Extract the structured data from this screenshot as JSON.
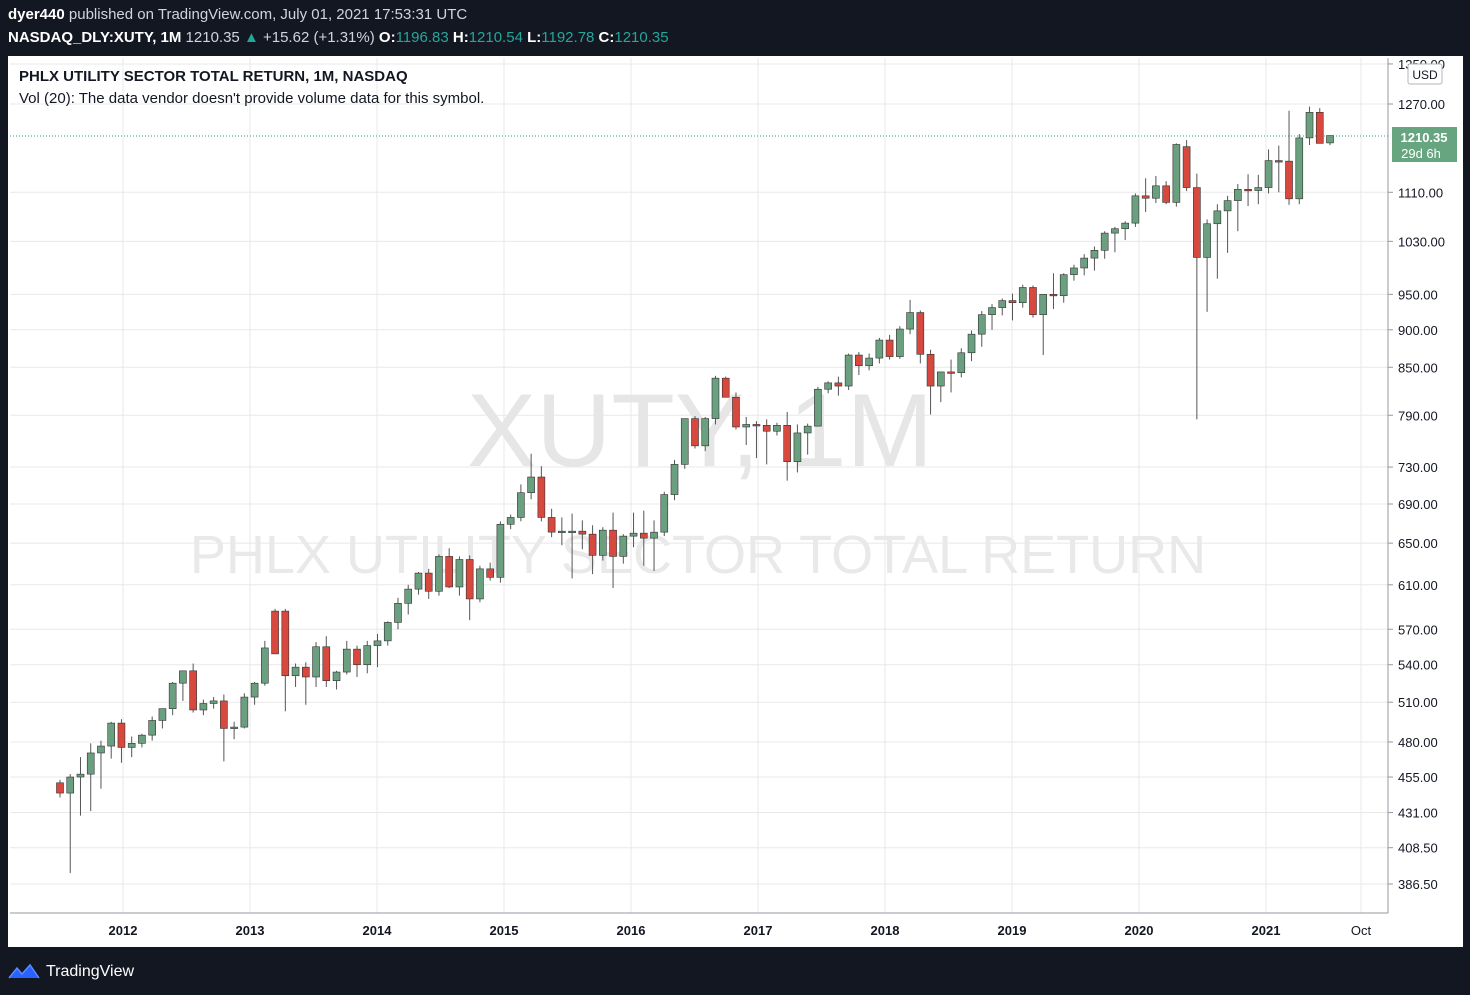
{
  "header": {
    "author": "dyer440",
    "published_text": "published on TradingView.com, July 01, 2021 17:53:31 UTC",
    "symbol": "NASDAQ_DLY:XUTY, 1M",
    "last": "1210.35",
    "up_arrow": "▲",
    "change": "+15.62 (+1.31%)",
    "o_label": "O:",
    "o_value": "1196.83",
    "h_label": "H:",
    "h_value": "1210.54",
    "l_label": "L:",
    "l_value": "1192.78",
    "c_label": "C:",
    "c_value": "1210.35"
  },
  "legend": {
    "title": "PHLX UTILITY SECTOR TOTAL RETURN, 1M, NASDAQ",
    "volume_note": "Vol (20): The data vendor doesn't provide volume data for this symbol."
  },
  "watermark": {
    "line1": "XUTY, 1M",
    "line2": "PHLX UTILITY SECTOR TOTAL RETURN"
  },
  "price_scale": {
    "currency": "USD",
    "last_price": "1210.35",
    "countdown": "29d 6h"
  },
  "footer": {
    "brand": "TradingView"
  },
  "colors": {
    "up": "#26a69a",
    "down": "#ef5350",
    "up_fill": "#6a9f7f",
    "down_fill": "#d7493e",
    "grid": "#e8e8e8",
    "text": "#131722",
    "badge": "#66a57f"
  },
  "chart_data": {
    "type": "candlestick",
    "title": "PHLX UTILITY SECTOR TOTAL RETURN, 1M, NASDAQ",
    "interval": "1M",
    "y_scale": "log",
    "y_ticks": [
      "386.50",
      "408.50",
      "431.00",
      "455.00",
      "480.00",
      "510.00",
      "540.00",
      "570.00",
      "610.00",
      "650.00",
      "690.00",
      "730.00",
      "790.00",
      "850.00",
      "900.00",
      "950.00",
      "1030.00",
      "1110.00",
      "1270.00",
      "1350.00"
    ],
    "x_ticks": [
      "2012",
      "2013",
      "2014",
      "2015",
      "2016",
      "2017",
      "2018",
      "2019",
      "2020",
      "2021",
      "Oct"
    ],
    "last_price": 1210.35,
    "ohlc": [
      [
        "2011-08",
        451,
        453,
        441,
        444
      ],
      [
        "2011-09",
        444,
        457,
        393,
        455
      ],
      [
        "2011-10",
        455,
        469,
        429,
        457
      ],
      [
        "2011-11",
        457,
        479,
        432,
        472
      ],
      [
        "2011-12",
        472,
        481,
        447,
        477
      ],
      [
        "2012-01",
        477,
        495,
        468,
        494
      ],
      [
        "2012-02",
        494,
        497,
        465,
        476
      ],
      [
        "2012-03",
        476,
        484,
        469,
        479
      ],
      [
        "2012-04",
        479,
        486,
        476,
        485
      ],
      [
        "2012-05",
        485,
        499,
        481,
        496
      ],
      [
        "2012-06",
        496,
        505,
        490,
        505
      ],
      [
        "2012-07",
        505,
        526,
        500,
        525
      ],
      [
        "2012-08",
        525,
        535,
        511,
        535
      ],
      [
        "2012-09",
        535,
        541,
        502,
        504
      ],
      [
        "2012-10",
        504,
        512,
        500,
        509
      ],
      [
        "2012-11",
        509,
        514,
        505,
        511
      ],
      [
        "2012-12",
        511,
        516,
        466,
        490
      ],
      [
        "2013-01",
        490,
        495,
        482,
        491
      ],
      [
        "2013-02",
        491,
        517,
        490,
        514
      ],
      [
        "2013-03",
        514,
        526,
        508,
        525
      ],
      [
        "2013-04",
        525,
        560,
        523,
        554
      ],
      [
        "2013-05",
        586,
        588,
        550,
        549
      ],
      [
        "2013-06",
        586,
        588,
        503,
        531
      ],
      [
        "2013-07",
        531,
        541,
        522,
        538
      ],
      [
        "2013-08",
        538,
        542,
        508,
        530
      ],
      [
        "2013-09",
        530,
        559,
        522,
        555
      ],
      [
        "2013-10",
        555,
        564,
        522,
        527
      ],
      [
        "2013-11",
        527,
        535,
        520,
        534
      ],
      [
        "2013-12",
        534,
        560,
        532,
        553
      ],
      [
        "2013-14",
        553,
        556,
        530,
        540
      ],
      [
        "2014-01",
        540,
        560,
        533,
        556
      ],
      [
        "2014-02",
        556,
        566,
        538,
        560
      ],
      [
        "2014-03",
        560,
        577,
        556,
        576
      ],
      [
        "2014-04",
        576,
        598,
        570,
        593
      ],
      [
        "2014-05",
        593,
        610,
        583,
        606
      ],
      [
        "2014-06",
        606,
        622,
        601,
        621
      ],
      [
        "2014-07",
        621,
        625,
        597,
        604
      ],
      [
        "2014-08",
        604,
        639,
        600,
        637
      ],
      [
        "2014-09",
        637,
        645,
        607,
        608
      ],
      [
        "2014-10",
        608,
        637,
        600,
        634
      ],
      [
        "2014-11",
        634,
        638,
        578,
        597
      ],
      [
        "2014-12",
        597,
        628,
        594,
        625
      ],
      [
        "2015-01",
        625,
        631,
        614,
        617
      ],
      [
        "2015-02",
        617,
        672,
        612,
        669
      ],
      [
        "2015-03",
        669,
        679,
        664,
        676
      ],
      [
        "2015-04",
        676,
        711,
        672,
        702
      ],
      [
        "2015-05",
        702,
        745,
        695,
        719
      ],
      [
        "2015-06",
        719,
        731,
        672,
        676
      ],
      [
        "2015-07",
        676,
        685,
        656,
        661
      ],
      [
        "2015-08",
        661,
        676,
        648,
        662
      ],
      [
        "2015-09",
        662,
        680,
        616,
        662
      ],
      [
        "2015-10",
        662,
        673,
        644,
        659
      ],
      [
        "2015-11",
        659,
        668,
        620,
        638
      ],
      [
        "2015-12",
        638,
        666,
        633,
        663
      ],
      [
        "2016-01",
        663,
        681,
        607,
        637
      ],
      [
        "2016-02",
        637,
        659,
        630,
        657
      ],
      [
        "2016-03",
        657,
        681,
        646,
        660
      ],
      [
        "2016-04",
        660,
        683,
        628,
        655
      ],
      [
        "2016-05",
        655,
        673,
        623,
        661
      ],
      [
        "2016-06",
        661,
        703,
        657,
        700
      ],
      [
        "2016-07",
        700,
        738,
        694,
        733
      ],
      [
        "2016-08",
        733,
        786,
        728,
        786
      ],
      [
        "2016-09",
        786,
        789,
        751,
        754
      ],
      [
        "2016-10",
        754,
        788,
        748,
        786
      ],
      [
        "2016-11",
        786,
        839,
        779,
        836
      ],
      [
        "2016-12",
        836,
        838,
        812,
        812
      ],
      [
        "2016-13",
        812,
        818,
        773,
        776
      ],
      [
        "2017-01",
        776,
        788,
        755,
        779
      ],
      [
        "2017-02",
        779,
        783,
        740,
        778
      ],
      [
        "2017-03",
        778,
        785,
        733,
        771
      ],
      [
        "2017-04",
        771,
        781,
        766,
        778
      ],
      [
        "2017-05",
        778,
        794,
        715,
        736
      ],
      [
        "2017-06",
        736,
        779,
        724,
        769
      ],
      [
        "2017-07",
        769,
        780,
        744,
        777
      ],
      [
        "2017-08",
        777,
        825,
        777,
        822
      ],
      [
        "2017-09",
        822,
        832,
        817,
        830
      ],
      [
        "2017-10",
        830,
        838,
        814,
        826
      ],
      [
        "2017-11",
        826,
        868,
        821,
        866
      ],
      [
        "2017-12",
        866,
        870,
        840,
        852
      ],
      [
        "2017-13",
        852,
        868,
        846,
        862
      ],
      [
        "2018-01",
        862,
        889,
        855,
        886
      ],
      [
        "2018-02",
        886,
        893,
        860,
        864
      ],
      [
        "2018-03",
        864,
        905,
        861,
        901
      ],
      [
        "2018-04",
        901,
        942,
        894,
        924
      ],
      [
        "2018-05",
        924,
        927,
        855,
        867
      ],
      [
        "2018-06",
        867,
        873,
        791,
        826
      ],
      [
        "2018-07",
        826,
        838,
        806,
        844
      ],
      [
        "2018-08",
        844,
        860,
        818,
        843
      ],
      [
        "2018-09",
        843,
        875,
        837,
        869
      ],
      [
        "2018-10",
        869,
        899,
        858,
        894
      ],
      [
        "2018-11",
        894,
        926,
        877,
        921
      ],
      [
        "2018-12",
        921,
        936,
        900,
        931
      ],
      [
        "2018-13",
        931,
        944,
        920,
        941
      ],
      [
        "2019-01",
        941,
        951,
        913,
        938
      ],
      [
        "2019-02",
        938,
        964,
        931,
        960
      ],
      [
        "2019-03",
        960,
        963,
        917,
        921
      ],
      [
        "2019-04",
        921,
        950,
        866,
        950
      ],
      [
        "2019-05",
        950,
        981,
        929,
        948
      ],
      [
        "2019-06",
        948,
        981,
        938,
        979
      ],
      [
        "2019-07",
        979,
        994,
        970,
        989
      ],
      [
        "2019-08",
        989,
        1010,
        978,
        1004
      ],
      [
        "2019-09",
        1004,
        1022,
        985,
        1016
      ],
      [
        "2019-10",
        1016,
        1046,
        1003,
        1043
      ],
      [
        "2019-11",
        1043,
        1053,
        1013,
        1050
      ],
      [
        "2019-12",
        1050,
        1062,
        1032,
        1059
      ],
      [
        "2020-01",
        1059,
        1108,
        1053,
        1104
      ],
      [
        "2020-02",
        1104,
        1134,
        1077,
        1100
      ],
      [
        "2020-03",
        1100,
        1138,
        1092,
        1121
      ],
      [
        "2020-04",
        1121,
        1129,
        1090,
        1093
      ],
      [
        "2020-05",
        1093,
        1196,
        1086,
        1194
      ],
      [
        "2020-06",
        1190,
        1202,
        1112,
        1118
      ],
      [
        "2020-07",
        1118,
        1142,
        785,
        1005
      ],
      [
        "2020-08",
        1005,
        1065,
        925,
        1058
      ],
      [
        "2020-09",
        1058,
        1090,
        973,
        1079
      ],
      [
        "2020-10",
        1079,
        1104,
        1012,
        1096
      ],
      [
        "2020-11",
        1096,
        1124,
        1046,
        1115
      ],
      [
        "2020-12",
        1115,
        1141,
        1087,
        1113
      ],
      [
        "2020-13",
        1113,
        1140,
        1090,
        1118
      ],
      [
        "2021-01",
        1118,
        1185,
        1108,
        1165
      ],
      [
        "2021-02",
        1165,
        1192,
        1110,
        1164
      ],
      [
        "2021-03",
        1164,
        1257,
        1089,
        1099
      ],
      [
        "2021-04",
        1099,
        1213,
        1090,
        1206
      ],
      [
        "2021-05",
        1206,
        1265,
        1193,
        1254
      ],
      [
        "2021-06",
        1254,
        1262,
        1196,
        1196
      ],
      [
        "2021-07",
        1196.83,
        1210.54,
        1192.78,
        1210.35
      ]
    ]
  }
}
